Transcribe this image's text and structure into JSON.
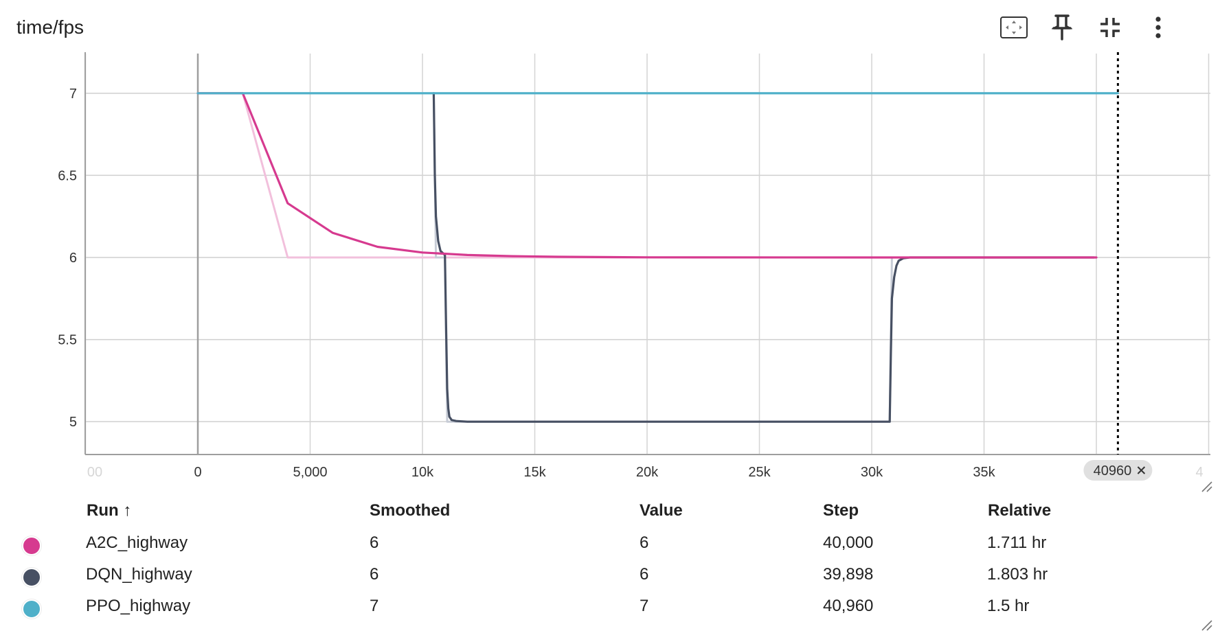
{
  "card": {
    "title": "time/fps"
  },
  "toolbar": {
    "icons": [
      "fit-domain-icon",
      "pin-icon",
      "collapse-icon",
      "more-vert-icon"
    ]
  },
  "chart_data": {
    "type": "line",
    "title": "time/fps",
    "xlabel": "",
    "ylabel": "",
    "xlim": [
      -5000,
      45000
    ],
    "ylim": [
      4.8,
      7.2
    ],
    "x_ticks": [
      0,
      5000,
      10000,
      15000,
      20000,
      25000,
      30000,
      35000
    ],
    "x_tick_labels": [
      "0",
      "5,000",
      "10k",
      "15k",
      "20k",
      "25k",
      "30k",
      "35k"
    ],
    "x_edge_labels": [
      "00",
      "4"
    ],
    "y_ticks": [
      5,
      5.5,
      6,
      6.5,
      7
    ],
    "y_tick_labels": [
      "5",
      "5.5",
      "6",
      "6.5",
      "7"
    ],
    "grid": true,
    "legend": "table-below",
    "step_cursor": {
      "value": 40960,
      "label": "40960"
    },
    "series": [
      {
        "name": "A2C_highway",
        "color": "#d63a8f",
        "raw_color": "#f2c0dc",
        "raw": {
          "x": [
            0,
            2000,
            4000,
            40000
          ],
          "y": [
            7,
            7,
            6,
            6
          ]
        },
        "smoothed": {
          "x": [
            0,
            2000,
            4000,
            6000,
            8000,
            10000,
            12000,
            14000,
            16000,
            20000,
            30000,
            40000
          ],
          "y": [
            7,
            7,
            6.33,
            6.15,
            6.065,
            6.03,
            6.015,
            6.008,
            6.004,
            6.001,
            6.0,
            6.0
          ]
        }
      },
      {
        "name": "DQN_highway",
        "color": "#475063",
        "raw_color": "#c7ccd6",
        "raw": {
          "x": [
            10500,
            10600,
            11000,
            11100,
            30800,
            30900,
            39898
          ],
          "y": [
            7,
            6,
            6,
            5,
            5,
            6,
            6
          ]
        },
        "smoothed": {
          "x": [
            10500,
            10550,
            10600,
            10700,
            10800,
            11000,
            11050,
            11100,
            11150,
            11200,
            11300,
            11500,
            12000,
            30800,
            30850,
            30900,
            31000,
            31100,
            31200,
            31400,
            31700,
            32000,
            39898
          ],
          "y": [
            7,
            6.5,
            6.25,
            6.1,
            6.04,
            6.015,
            5.6,
            5.2,
            5.08,
            5.03,
            5.01,
            5.004,
            5.0,
            5.0,
            5.4,
            5.75,
            5.88,
            5.95,
            5.98,
            5.995,
            6.0,
            6.0,
            6.0
          ]
        }
      },
      {
        "name": "PPO_highway",
        "color": "#4fb0c9",
        "raw_color": "#b9e0ea",
        "raw": {
          "x": [
            0,
            40960
          ],
          "y": [
            7,
            7
          ]
        },
        "smoothed": {
          "x": [
            0,
            40960
          ],
          "y": [
            7,
            7
          ]
        }
      }
    ]
  },
  "table": {
    "headers": {
      "run": "Run ↑",
      "smoothed": "Smoothed",
      "value": "Value",
      "step": "Step",
      "relative": "Relative"
    },
    "rows": [
      {
        "name": "A2C_highway",
        "color": "#d63a8f",
        "smoothed": "6",
        "value": "6",
        "step": "40,000",
        "relative": "1.711 hr"
      },
      {
        "name": "DQN_highway",
        "color": "#475063",
        "smoothed": "6",
        "value": "6",
        "step": "39,898",
        "relative": "1.803 hr"
      },
      {
        "name": "PPO_highway",
        "color": "#4fb0c9",
        "smoothed": "7",
        "value": "7",
        "step": "40,960",
        "relative": "1.5 hr"
      }
    ]
  }
}
